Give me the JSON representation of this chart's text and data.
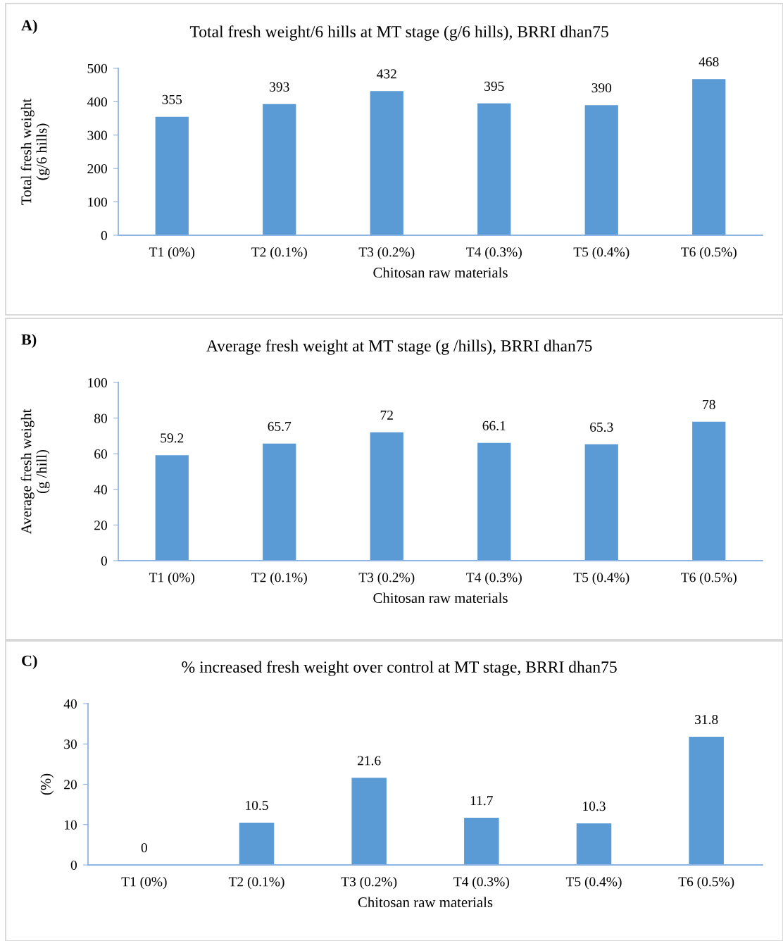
{
  "chart_data": [
    {
      "type": "bar",
      "title": "Total fresh weight/6 hills at MT stage (g/6 hills), BRRI dhan75",
      "xlabel": "Chitosan raw materials",
      "ylabel": "Total fresh weight\n(g/6 hills)",
      "annotations": [
        "A)"
      ],
      "categories": [
        "T1 (0%)",
        "T2 (0.1%)",
        "T3 (0.2%)",
        "T4 (0.3%)",
        "T5 (0.4%)",
        "T6 (0.5%)"
      ],
      "values": [
        355,
        393,
        432,
        395,
        390,
        468
      ],
      "color": "#5b9bd5",
      "ylim": [
        0,
        500
      ],
      "yticks": [
        0,
        100,
        200,
        300,
        400,
        500
      ],
      "data_labels": true,
      "grid": false
    },
    {
      "type": "bar",
      "title": "Average fresh weight at MT stage (g /hills), BRRI dhan75",
      "xlabel": "Chitosan raw materials",
      "ylabel": "Average fresh weight\n(g /hill)",
      "annotations": [
        "B)"
      ],
      "categories": [
        "T1 (0%)",
        "T2 (0.1%)",
        "T3 (0.2%)",
        "T4 (0.3%)",
        "T5 (0.4%)",
        "T6 (0.5%)"
      ],
      "values": [
        59.2,
        65.7,
        72,
        66.1,
        65.3,
        78
      ],
      "color": "#5b9bd5",
      "ylim": [
        0,
        100
      ],
      "yticks": [
        0,
        20,
        40,
        60,
        80,
        100
      ],
      "data_labels": true,
      "grid": false
    },
    {
      "type": "bar",
      "title": "% increased fresh weight over control at MT stage, BRRI dhan75",
      "xlabel": "Chitosan raw materials",
      "ylabel": "(%)",
      "annotations": [
        "C)"
      ],
      "categories": [
        "T1 (0%)",
        "T2 (0.1%)",
        "T3 (0.2%)",
        "T4 (0.3%)",
        "T5 (0.4%)",
        "T6 (0.5%)"
      ],
      "values": [
        0,
        10.5,
        21.6,
        11.7,
        10.3,
        31.8
      ],
      "color": "#5b9bd5",
      "ylim": [
        0,
        40
      ],
      "yticks": [
        0,
        10,
        20,
        30,
        40
      ],
      "data_labels": true,
      "grid": false
    }
  ]
}
